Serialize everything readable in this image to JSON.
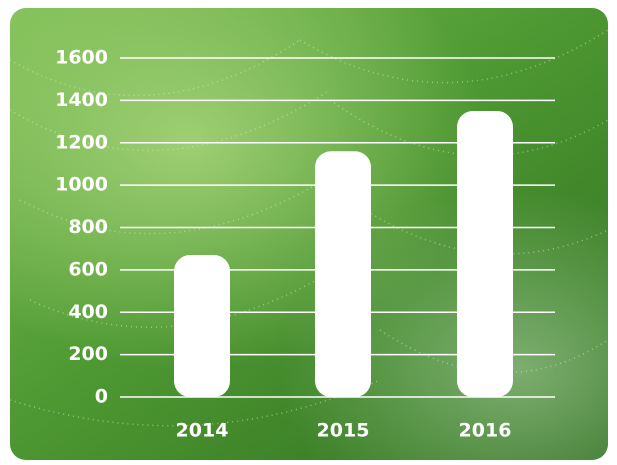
{
  "chart_data": {
    "type": "bar",
    "categories": [
      "2014",
      "2015",
      "2016"
    ],
    "values": [
      670,
      1160,
      1350
    ],
    "color": "#ffffff",
    "ylim": [
      0,
      1600
    ],
    "yticks": [
      0,
      200,
      400,
      600,
      800,
      1000,
      1200,
      1400,
      1600
    ],
    "grid": true
  }
}
